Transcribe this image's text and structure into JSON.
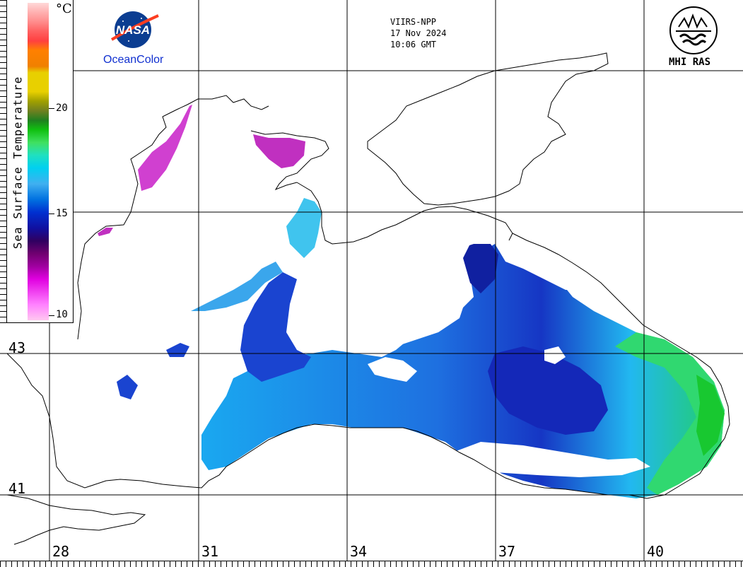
{
  "header": {
    "satellite": "VIIRS-NPP",
    "date": "17 Nov 2024",
    "time": "10:06 GMT"
  },
  "logos": {
    "nasa_text": "NASA",
    "oceancolor": "OceanColor",
    "mhi": "MHI RAS"
  },
  "colorbar": {
    "title": "Sea Surface Temperature",
    "unit": "°C",
    "ticks": [
      "20",
      "15",
      "10"
    ],
    "colors": [
      "#ffd8d8",
      "#ff6060",
      "#ff8000",
      "#e8d000",
      "#708020",
      "#10c010",
      "#20e0c0",
      "#00d0f0",
      "#0070e0",
      "#1010a0",
      "#700070",
      "#e000e0",
      "#ffc8f0"
    ]
  },
  "grid": {
    "lat_labels": [
      "43",
      "41"
    ],
    "lon_labels": [
      "28",
      "31",
      "34",
      "37",
      "40"
    ]
  },
  "map": {
    "region": "Black Sea",
    "land_color": "#ffffff",
    "coast_color": "#000000",
    "sst_colors": {
      "warm": "#20d050",
      "mid": "#20c0f0",
      "cool": "#1530c8",
      "cold": "#d030c8"
    }
  }
}
